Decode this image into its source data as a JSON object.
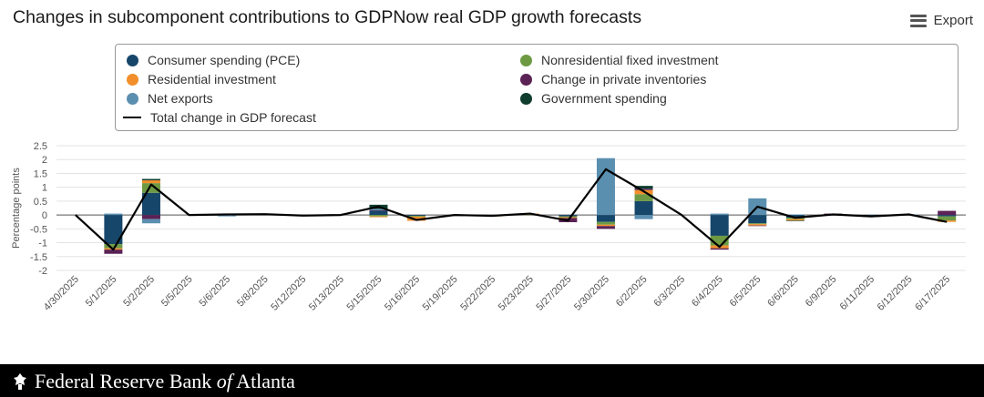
{
  "header": {
    "title": "Changes in subcomponent contributions to GDPNow real GDP growth forecasts",
    "export_label": "Export"
  },
  "legend": {
    "items": [
      {
        "label": "Consumer spending (PCE)",
        "color": "#16466a",
        "symbol": "dot"
      },
      {
        "label": "Residential investment",
        "color": "#f28e2b",
        "symbol": "dot"
      },
      {
        "label": "Net exports",
        "color": "#5b8fb0",
        "symbol": "dot"
      },
      {
        "label": "Total change in GDP forecast",
        "color": "#000000",
        "symbol": "line"
      },
      {
        "label": "Nonresidential fixed investment",
        "color": "#6e9a44",
        "symbol": "dot"
      },
      {
        "label": "Change in private inventories",
        "color": "#5a2255",
        "symbol": "dot"
      },
      {
        "label": "Government spending",
        "color": "#0f3d2e",
        "symbol": "dot"
      }
    ]
  },
  "footer": {
    "brand_prefix": "Federal Reserve Bank ",
    "brand_italic": "of",
    "brand_suffix": " Atlanta"
  },
  "chart_data": {
    "type": "bar",
    "stacked": true,
    "ylabel": "Percentage points",
    "ylim": [
      -2,
      2.5
    ],
    "yticks": [
      2.5,
      2,
      1.5,
      1,
      0.5,
      0,
      -0.5,
      -1,
      -1.5,
      -2
    ],
    "grid": true,
    "categories": [
      "4/30/2025",
      "5/1/2025",
      "5/2/2025",
      "5/5/2025",
      "5/6/2025",
      "5/8/2025",
      "5/12/2025",
      "5/13/2025",
      "5/15/2025",
      "5/16/2025",
      "5/19/2025",
      "5/22/2025",
      "5/23/2025",
      "5/27/2025",
      "5/30/2025",
      "6/2/2025",
      "6/3/2025",
      "6/4/2025",
      "6/5/2025",
      "6/6/2025",
      "6/9/2025",
      "6/11/2025",
      "6/12/2025",
      "6/17/2025"
    ],
    "series": [
      {
        "name": "Consumer spending (PCE)",
        "color": "#16466a",
        "values": [
          0,
          -1.05,
          0.8,
          0,
          0,
          0,
          0,
          0,
          0.15,
          -0.03,
          0,
          0,
          0,
          -0.05,
          -0.25,
          0.5,
          0,
          -0.75,
          -0.3,
          -0.1,
          0,
          -0.05,
          0,
          -0.05
        ]
      },
      {
        "name": "Nonresidential fixed investment",
        "color": "#6e9a44",
        "values": [
          0,
          -0.15,
          0.35,
          0,
          0,
          0,
          0,
          0,
          -0.05,
          -0.03,
          0,
          0,
          0.02,
          -0.03,
          -0.1,
          0.25,
          0,
          -0.35,
          -0.03,
          -0.05,
          0,
          0,
          0,
          -0.15
        ]
      },
      {
        "name": "Residential investment",
        "color": "#f28e2b",
        "values": [
          0,
          -0.05,
          0.1,
          0,
          0,
          0,
          0,
          0,
          -0.03,
          -0.15,
          0,
          -0.05,
          0.03,
          -0.03,
          -0.05,
          0.15,
          0,
          -0.1,
          -0.05,
          -0.05,
          0,
          0,
          0,
          -0.05
        ]
      },
      {
        "name": "Change in private inventories",
        "color": "#5a2255",
        "values": [
          0,
          -0.15,
          -0.15,
          0,
          0,
          0,
          0,
          0,
          0.02,
          0,
          0,
          0,
          0,
          -0.15,
          -0.1,
          0.05,
          0,
          -0.05,
          -0.02,
          0,
          0.05,
          0,
          0,
          0.15
        ]
      },
      {
        "name": "Net exports",
        "color": "#5b8fb0",
        "values": [
          0,
          0.05,
          -0.15,
          0,
          -0.05,
          0,
          0,
          0,
          0.05,
          0,
          0,
          0,
          0,
          0,
          2.05,
          -0.15,
          0,
          0.05,
          0.6,
          0.02,
          0,
          -0.02,
          0.02,
          0
        ]
      },
      {
        "name": "Government spending",
        "color": "#0f3d2e",
        "values": [
          0,
          0,
          0.05,
          0,
          0,
          0,
          0,
          0,
          0.15,
          0,
          0,
          0,
          0,
          0,
          0,
          0.1,
          0,
          0,
          0,
          -0.02,
          0,
          0,
          0,
          0
        ]
      }
    ],
    "total": {
      "name": "Total change in GDP forecast",
      "color": "#000000",
      "values": [
        0,
        -1.25,
        1.1,
        0,
        0.02,
        0.03,
        -0.02,
        0,
        0.3,
        -0.18,
        0,
        -0.03,
        0.05,
        -0.2,
        1.65,
        0.85,
        0,
        -1.15,
        0.3,
        -0.1,
        0.02,
        -0.05,
        0.02,
        -0.25
      ]
    }
  }
}
